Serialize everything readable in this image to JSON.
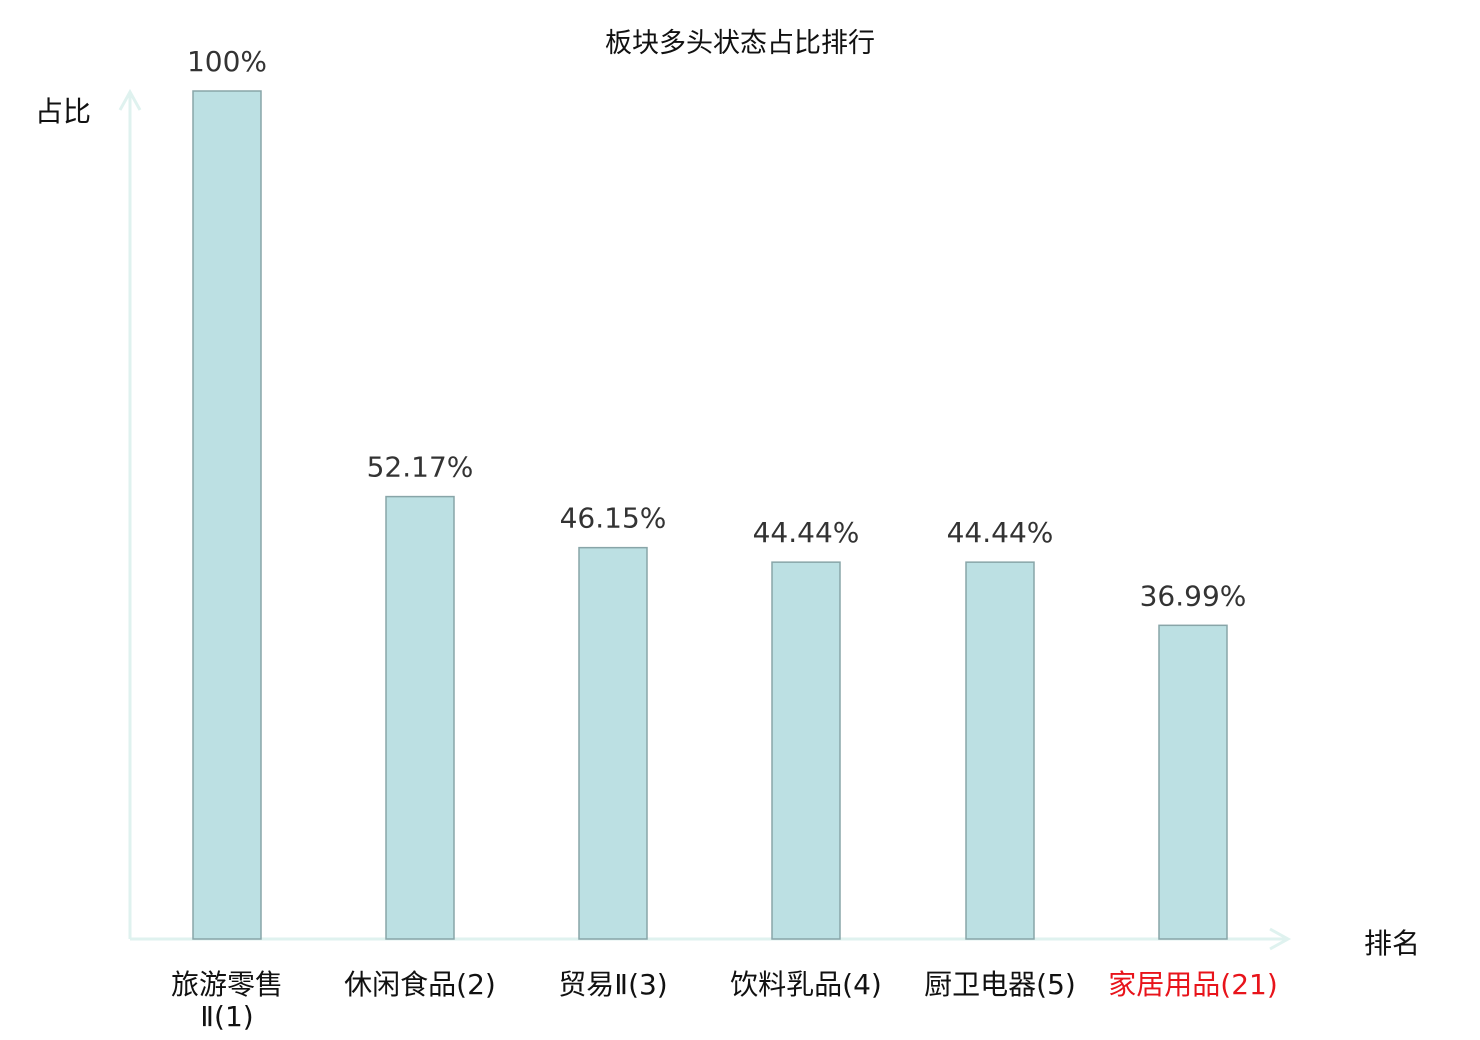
{
  "chart_data": {
    "type": "bar",
    "title": "板块多头状态占比排行",
    "xlabel": "排名",
    "ylabel": "占比",
    "categories": [
      {
        "name": "旅游零售Ⅱ",
        "rank": "(1)"
      },
      {
        "name": "休闲食品",
        "rank": "(2)"
      },
      {
        "name": "贸易Ⅱ",
        "rank": "(3)"
      },
      {
        "name": "饮料乳品",
        "rank": "(4)"
      },
      {
        "name": "厨卫电器",
        "rank": "(5)"
      },
      {
        "name": "家居用品",
        "rank": "(21)",
        "highlight": true
      }
    ],
    "values": [
      100,
      52.17,
      46.15,
      44.44,
      44.44,
      36.99
    ],
    "data_labels": [
      "100%",
      "52.17%",
      "46.15%",
      "44.44%",
      "44.44%",
      "36.99%"
    ],
    "ylim": [
      0,
      100
    ],
    "grid": false,
    "colors": {
      "bar_fill": "#bce0e3",
      "bar_stroke": "#88a5a8",
      "axis": "#dff2ef",
      "highlight_label": "#e8141b",
      "label": "#111111"
    }
  }
}
